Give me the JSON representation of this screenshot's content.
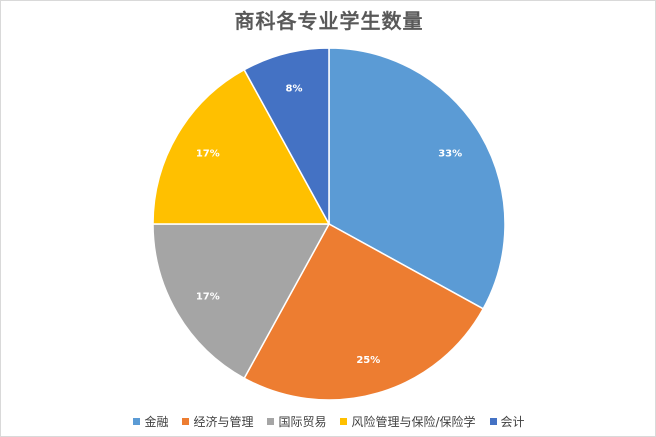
{
  "chart_data": {
    "type": "pie",
    "title": "商科各专业学生数量",
    "categories": [
      "金融",
      "经济与管理",
      "国际贸易",
      "风险管理与保险/保险学",
      "会计"
    ],
    "values": [
      33,
      25,
      17,
      17,
      8
    ],
    "labels": [
      "33%",
      "25%",
      "17%",
      "17%",
      "8%"
    ],
    "colors": [
      "#5b9bd5",
      "#ed7d31",
      "#a5a5a5",
      "#ffc000",
      "#4472c4"
    ],
    "legend_position": "bottom",
    "start_angle": "top, clockwise"
  }
}
